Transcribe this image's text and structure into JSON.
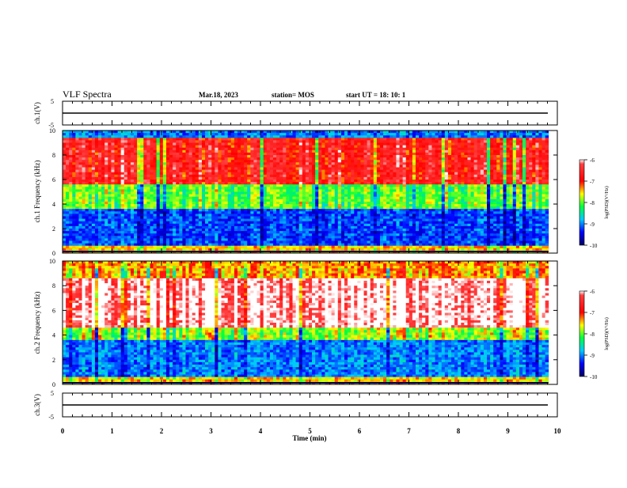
{
  "header": {
    "title": "VLF Spectra",
    "date": "Mar.18, 2023",
    "station": "station= MOS",
    "start": "start UT =  18: 10: 1"
  },
  "colors": {
    "spectrogram_scale": [
      "#000080",
      "#0000ff",
      "#00a0ff",
      "#00ffff",
      "#00ff60",
      "#80ff00",
      "#ffff00",
      "#ff8000",
      "#ff0000",
      "#ffffff"
    ]
  },
  "chart_data": [
    {
      "type": "line",
      "id": "ch1-waveform",
      "ylabel": "ch.1(V)",
      "ylim": [
        -5,
        5
      ],
      "yticks": [
        "5",
        "-5"
      ],
      "xlim": [
        0,
        10
      ],
      "description_values": {
        "x_end_min": 9.82,
        "baseline_V": 0
      }
    },
    {
      "type": "heatmap",
      "id": "ch1-spectrogram",
      "ylabel": "ch.1  Frequency (kHz)",
      "ylim": [
        0,
        10
      ],
      "yticks": [
        "0",
        "2",
        "4",
        "6",
        "8",
        "10"
      ],
      "xlim": [
        0,
        10
      ],
      "x_end_min": 9.82,
      "colorbar": {
        "label": "log(PSD)(V²/Hz)",
        "range": [
          -10,
          -6
        ],
        "ticks": [
          "-6",
          "-7",
          "-8",
          "-9",
          "-10"
        ]
      },
      "bands_kHz": [
        {
          "from": 0,
          "to": 0.6,
          "log_psd": -7.5
        },
        {
          "from": 0.6,
          "to": 3.5,
          "log_psd": -9.2
        },
        {
          "from": 3.5,
          "to": 5.5,
          "log_psd": -8.0
        },
        {
          "from": 5.5,
          "to": 9.3,
          "log_psd": -6.7
        },
        {
          "from": 9.3,
          "to": 10,
          "log_psd": -9.0
        }
      ]
    },
    {
      "type": "heatmap",
      "id": "ch2-spectrogram",
      "ylabel": "ch.2  Frequency (kHz)",
      "ylim": [
        0,
        10
      ],
      "yticks": [
        "0",
        "2",
        "4",
        "6",
        "8",
        "10"
      ],
      "xlim": [
        0,
        10
      ],
      "x_end_min": 9.82,
      "colorbar": {
        "label": "log(PSD)(V²/Hz)",
        "range": [
          -10,
          -6
        ],
        "ticks": [
          "-6",
          "-7",
          "-8",
          "-9",
          "-10"
        ]
      },
      "bands_kHz": [
        {
          "from": 0,
          "to": 0.6,
          "log_psd": -7.5
        },
        {
          "from": 0.6,
          "to": 3.5,
          "log_psd": -9.0
        },
        {
          "from": 3.5,
          "to": 4.5,
          "log_psd": -7.8
        },
        {
          "from": 4.5,
          "to": 8.5,
          "log_psd": -6.0
        },
        {
          "from": 8.5,
          "to": 10,
          "log_psd": -7.3
        }
      ]
    },
    {
      "type": "line",
      "id": "ch2-waveform",
      "ylabel": "ch.3(V)",
      "ylim": [
        -5,
        5
      ],
      "yticks": [
        "5",
        "-5"
      ],
      "xlim": [
        0,
        10
      ],
      "description_values": {
        "x_end_min": 9.82,
        "baseline_V": 0
      }
    }
  ],
  "xaxis": {
    "label": "Time  (min)",
    "ticks": [
      "0",
      "1",
      "2",
      "3",
      "4",
      "5",
      "6",
      "7",
      "8",
      "9",
      "10"
    ]
  }
}
